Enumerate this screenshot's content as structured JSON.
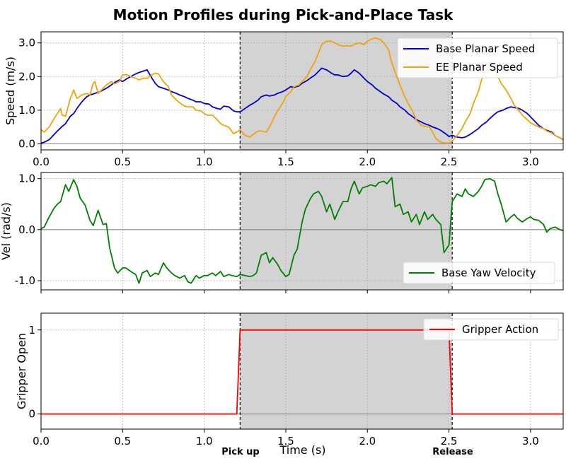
{
  "figure": {
    "title": "Motion Profiles during Pick-and-Place Task",
    "xlabel": "Time (s)",
    "events": [
      {
        "label": "Pick up",
        "x": 1.22
      },
      {
        "label": "Release",
        "x": 2.52
      }
    ],
    "shaded_region": [
      1.22,
      2.52
    ],
    "shade_color": "#d3d3d3"
  },
  "chart_data": [
    {
      "type": "line",
      "ylabel": "Speed (m/s)",
      "xlim": [
        0.0,
        3.2
      ],
      "ylim": [
        -0.18,
        3.33
      ],
      "xticks": [
        0.0,
        0.5,
        1.0,
        1.5,
        2.0,
        2.5,
        3.0
      ],
      "yticks": [
        0.0,
        1.0,
        2.0,
        3.0
      ],
      "xtick_labels": [
        "0.0",
        "0.5",
        "1.0",
        "1.5",
        "2.0",
        "2.5",
        "3.0"
      ],
      "ytick_labels": [
        "0.0",
        "1.0",
        "2.0",
        "3.0"
      ],
      "grid": true,
      "legend": "top-right",
      "series": [
        {
          "name": "Base Planar Speed",
          "color": "#0000cd",
          "x": [
            0.0,
            0.02,
            0.05,
            0.08,
            0.1,
            0.13,
            0.15,
            0.18,
            0.2,
            0.22,
            0.25,
            0.28,
            0.3,
            0.33,
            0.36,
            0.4,
            0.43,
            0.45,
            0.48,
            0.5,
            0.53,
            0.55,
            0.58,
            0.6,
            0.62,
            0.65,
            0.68,
            0.7,
            0.72,
            0.75,
            0.78,
            0.8,
            0.83,
            0.85,
            0.88,
            0.9,
            0.93,
            0.95,
            0.98,
            1.0,
            1.03,
            1.05,
            1.08,
            1.1,
            1.12,
            1.15,
            1.18,
            1.2,
            1.22,
            1.25,
            1.28,
            1.3,
            1.33,
            1.35,
            1.38,
            1.4,
            1.43,
            1.45,
            1.48,
            1.5,
            1.53,
            1.55,
            1.58,
            1.6,
            1.63,
            1.65,
            1.68,
            1.7,
            1.72,
            1.75,
            1.78,
            1.8,
            1.82,
            1.85,
            1.88,
            1.9,
            1.92,
            1.95,
            1.98,
            2.0,
            2.03,
            2.05,
            2.08,
            2.1,
            2.13,
            2.15,
            2.18,
            2.2,
            2.23,
            2.25,
            2.28,
            2.3,
            2.33,
            2.35,
            2.38,
            2.4,
            2.43,
            2.45,
            2.48,
            2.5,
            2.52,
            2.55,
            2.58,
            2.6,
            2.63,
            2.65,
            2.68,
            2.7,
            2.73,
            2.75,
            2.78,
            2.8,
            2.83,
            2.85,
            2.88,
            2.9,
            2.93,
            2.95,
            2.98,
            3.0,
            3.03,
            3.05,
            3.08,
            3.1,
            3.13,
            3.15,
            3.18,
            3.2
          ],
          "values": [
            0.02,
            0.05,
            0.12,
            0.28,
            0.38,
            0.52,
            0.6,
            0.82,
            0.9,
            1.05,
            1.25,
            1.4,
            1.45,
            1.5,
            1.55,
            1.65,
            1.75,
            1.82,
            1.9,
            1.85,
            1.95,
            2.0,
            2.08,
            2.12,
            2.15,
            2.2,
            1.95,
            1.8,
            1.7,
            1.65,
            1.6,
            1.55,
            1.5,
            1.45,
            1.4,
            1.35,
            1.3,
            1.25,
            1.25,
            1.2,
            1.18,
            1.1,
            1.05,
            1.03,
            1.12,
            1.1,
            0.98,
            0.95,
            0.95,
            1.05,
            1.15,
            1.2,
            1.3,
            1.4,
            1.45,
            1.42,
            1.45,
            1.5,
            1.55,
            1.6,
            1.7,
            1.68,
            1.72,
            1.8,
            1.88,
            1.95,
            2.05,
            2.15,
            2.25,
            2.2,
            2.1,
            2.05,
            2.05,
            2.0,
            2.02,
            2.1,
            2.2,
            2.1,
            1.95,
            1.85,
            1.75,
            1.65,
            1.55,
            1.48,
            1.4,
            1.3,
            1.2,
            1.1,
            1.0,
            0.9,
            0.8,
            0.72,
            0.65,
            0.6,
            0.55,
            0.5,
            0.45,
            0.4,
            0.3,
            0.22,
            0.25,
            0.2,
            0.18,
            0.2,
            0.28,
            0.35,
            0.45,
            0.55,
            0.65,
            0.75,
            0.88,
            0.95,
            1.0,
            1.05,
            1.1,
            1.08,
            1.05,
            1.0,
            0.9,
            0.8,
            0.65,
            0.55,
            0.45,
            0.4,
            0.35,
            0.25,
            0.18,
            0.12
          ]
        },
        {
          "name": "EE Planar Speed",
          "color": "#f0a30a",
          "x": [
            0.0,
            0.02,
            0.05,
            0.08,
            0.1,
            0.12,
            0.13,
            0.15,
            0.18,
            0.2,
            0.22,
            0.25,
            0.28,
            0.3,
            0.32,
            0.33,
            0.35,
            0.38,
            0.4,
            0.43,
            0.45,
            0.48,
            0.5,
            0.53,
            0.55,
            0.58,
            0.6,
            0.63,
            0.65,
            0.68,
            0.7,
            0.72,
            0.75,
            0.78,
            0.8,
            0.83,
            0.85,
            0.88,
            0.9,
            0.93,
            0.95,
            0.98,
            1.0,
            1.02,
            1.05,
            1.08,
            1.1,
            1.12,
            1.15,
            1.18,
            1.2,
            1.22,
            1.25,
            1.28,
            1.3,
            1.33,
            1.35,
            1.38,
            1.4,
            1.43,
            1.45,
            1.48,
            1.5,
            1.53,
            1.55,
            1.58,
            1.6,
            1.63,
            1.65,
            1.68,
            1.7,
            1.72,
            1.75,
            1.78,
            1.8,
            1.82,
            1.85,
            1.88,
            1.9,
            1.93,
            1.95,
            1.98,
            2.0,
            2.03,
            2.05,
            2.08,
            2.1,
            2.13,
            2.15,
            2.18,
            2.2,
            2.22,
            2.25,
            2.28,
            2.3,
            2.33,
            2.35,
            2.38,
            2.4,
            2.42,
            2.45,
            2.48,
            2.5,
            2.52,
            2.55,
            2.58,
            2.6,
            2.63,
            2.65,
            2.68,
            2.7,
            2.73,
            2.75,
            2.78,
            2.8,
            2.82,
            2.85,
            2.88,
            2.9,
            2.93,
            2.95,
            2.98,
            3.0,
            3.03,
            3.05,
            3.08,
            3.1,
            3.13,
            3.15,
            3.18,
            3.2
          ],
          "values": [
            0.42,
            0.35,
            0.5,
            0.75,
            0.9,
            1.05,
            0.85,
            0.82,
            1.35,
            1.6,
            1.35,
            1.45,
            1.5,
            1.45,
            1.8,
            1.85,
            1.5,
            1.65,
            1.75,
            1.85,
            1.78,
            1.85,
            2.05,
            2.05,
            2.0,
            1.95,
            1.9,
            1.95,
            1.95,
            2.05,
            2.1,
            2.08,
            1.85,
            1.7,
            1.45,
            1.3,
            1.22,
            1.12,
            1.1,
            1.1,
            1.0,
            0.98,
            0.9,
            0.85,
            0.85,
            0.72,
            0.6,
            0.55,
            0.5,
            0.3,
            0.35,
            0.42,
            0.25,
            0.2,
            0.28,
            0.38,
            0.38,
            0.35,
            0.5,
            0.8,
            0.98,
            1.2,
            1.4,
            1.55,
            1.7,
            1.75,
            1.85,
            2.0,
            2.2,
            2.45,
            2.7,
            2.95,
            3.05,
            3.05,
            3.0,
            2.95,
            2.9,
            2.92,
            2.9,
            2.98,
            3.0,
            2.95,
            3.05,
            3.12,
            3.15,
            3.1,
            3.0,
            2.8,
            2.4,
            2.0,
            1.75,
            1.5,
            1.2,
            0.95,
            0.7,
            0.55,
            0.52,
            0.5,
            0.35,
            0.15,
            0.05,
            0.02,
            0.02,
            0.08,
            0.25,
            0.45,
            0.65,
            0.9,
            1.2,
            1.55,
            1.9,
            2.2,
            2.35,
            2.2,
            2.0,
            1.8,
            1.6,
            1.35,
            1.15,
            0.98,
            0.85,
            0.72,
            0.62,
            0.55,
            0.5,
            0.45,
            0.38,
            0.32,
            0.25,
            0.18,
            0.12
          ]
        }
      ]
    },
    {
      "type": "line",
      "ylabel": "Vel (rad/s)",
      "xlim": [
        0.0,
        3.2
      ],
      "ylim": [
        -1.18,
        1.12
      ],
      "xticks": [
        0.0,
        0.5,
        1.0,
        1.5,
        2.0,
        2.5,
        3.0
      ],
      "yticks": [
        -1.0,
        0.0,
        1.0
      ],
      "ytick_labels": [
        "-1.0",
        "0.0",
        "1.0"
      ],
      "grid": true,
      "legend": "bottom-right",
      "series": [
        {
          "name": "Base Yaw Velocity",
          "color": "#008000",
          "x": [
            0.0,
            0.02,
            0.05,
            0.08,
            0.1,
            0.12,
            0.15,
            0.17,
            0.2,
            0.22,
            0.24,
            0.27,
            0.3,
            0.32,
            0.35,
            0.38,
            0.4,
            0.42,
            0.45,
            0.47,
            0.5,
            0.52,
            0.55,
            0.58,
            0.6,
            0.62,
            0.65,
            0.67,
            0.7,
            0.72,
            0.75,
            0.77,
            0.8,
            0.82,
            0.85,
            0.88,
            0.9,
            0.92,
            0.95,
            0.97,
            1.0,
            1.02,
            1.05,
            1.07,
            1.1,
            1.12,
            1.15,
            1.17,
            1.2,
            1.22,
            1.25,
            1.28,
            1.3,
            1.32,
            1.35,
            1.38,
            1.4,
            1.42,
            1.45,
            1.47,
            1.5,
            1.52,
            1.55,
            1.57,
            1.6,
            1.62,
            1.65,
            1.67,
            1.7,
            1.72,
            1.75,
            1.77,
            1.8,
            1.82,
            1.85,
            1.88,
            1.9,
            1.92,
            1.95,
            1.97,
            2.0,
            2.02,
            2.05,
            2.07,
            2.1,
            2.12,
            2.15,
            2.17,
            2.2,
            2.22,
            2.25,
            2.27,
            2.3,
            2.32,
            2.35,
            2.37,
            2.4,
            2.42,
            2.45,
            2.47,
            2.5,
            2.52,
            2.55,
            2.58,
            2.6,
            2.62,
            2.65,
            2.68,
            2.7,
            2.72,
            2.75,
            2.78,
            2.8,
            2.82,
            2.85,
            2.88,
            2.9,
            2.92,
            2.95,
            2.98,
            3.0,
            3.02,
            3.05,
            3.08,
            3.1,
            3.12,
            3.15,
            3.18,
            3.2
          ],
          "values": [
            0.02,
            0.05,
            0.25,
            0.42,
            0.5,
            0.55,
            0.88,
            0.75,
            0.98,
            0.85,
            0.62,
            0.48,
            0.18,
            0.08,
            0.38,
            0.1,
            0.12,
            -0.35,
            -0.75,
            -0.85,
            -0.75,
            -0.75,
            -0.82,
            -0.88,
            -1.05,
            -0.85,
            -0.8,
            -0.92,
            -0.85,
            -0.88,
            -0.65,
            -0.75,
            -0.85,
            -0.9,
            -0.95,
            -0.9,
            -1.02,
            -1.05,
            -0.9,
            -0.95,
            -0.9,
            -0.9,
            -0.85,
            -0.9,
            -0.82,
            -0.92,
            -0.88,
            -0.9,
            -0.92,
            -0.88,
            -0.9,
            -0.92,
            -0.9,
            -0.85,
            -0.5,
            -0.45,
            -0.65,
            -0.55,
            -0.68,
            -0.8,
            -0.92,
            -0.88,
            -0.5,
            -0.38,
            0.15,
            0.4,
            0.6,
            0.7,
            0.75,
            0.65,
            0.35,
            0.5,
            0.2,
            0.35,
            0.55,
            0.55,
            0.8,
            0.95,
            0.7,
            0.82,
            0.85,
            0.88,
            0.85,
            0.92,
            0.95,
            0.9,
            1.02,
            0.45,
            0.5,
            0.3,
            0.35,
            0.15,
            0.3,
            0.1,
            0.35,
            0.2,
            0.3,
            0.2,
            0.1,
            -0.45,
            -0.3,
            0.55,
            0.7,
            0.65,
            0.8,
            0.7,
            0.65,
            0.75,
            0.85,
            0.98,
            1.0,
            0.95,
            0.7,
            0.5,
            0.15,
            0.25,
            0.3,
            0.22,
            0.15,
            0.22,
            0.25,
            0.2,
            0.18,
            0.1,
            -0.05,
            0.02,
            0.05,
            0.0,
            -0.02
          ]
        }
      ]
    },
    {
      "type": "line",
      "ylabel": "Gripper Open",
      "xlim": [
        0.0,
        3.2
      ],
      "ylim": [
        -0.18,
        1.2
      ],
      "xticks": [
        0.0,
        0.5,
        1.0,
        1.5,
        2.0,
        2.5,
        3.0
      ],
      "xtick_labels": [
        "0.0",
        "0.5",
        "1.0",
        "1.5",
        "2.0",
        "2.5",
        "3.0"
      ],
      "yticks": [
        0,
        1
      ],
      "ytick_labels": [
        "0",
        "1"
      ],
      "grid": true,
      "legend": "top-right",
      "series": [
        {
          "name": "Gripper Action",
          "color": "#ff0000",
          "x": [
            0.0,
            1.2,
            1.22,
            2.5,
            2.52,
            3.2
          ],
          "values": [
            0,
            0,
            1,
            1,
            0,
            0
          ]
        }
      ]
    }
  ]
}
